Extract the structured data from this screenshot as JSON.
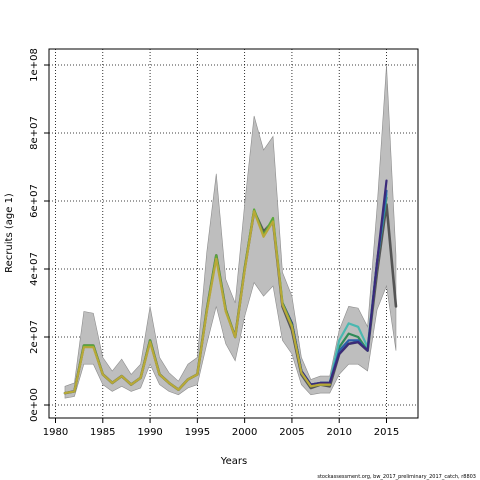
{
  "chart_data": {
    "type": "line",
    "xlabel": "Years",
    "ylabel": "Recruits (age 1)",
    "xlim": [
      1980,
      2018
    ],
    "ylim": [
      0,
      100000000
    ],
    "x_ticks": [
      1980,
      1985,
      1990,
      1995,
      2000,
      2005,
      2010,
      2015
    ],
    "y_ticks": [
      0,
      20000000,
      40000000,
      60000000,
      80000000,
      100000000
    ],
    "y_tick_labels": [
      "0e+00",
      "2e+07",
      "4e+07",
      "6e+07",
      "8e+07",
      "1e+08"
    ],
    "grid": true,
    "footnote": "stockassessment.org, bw_2017_preliminary_2017_catch, r8803",
    "confidence_band": {
      "color": "#bebebe",
      "x": [
        1981,
        1982,
        1983,
        1984,
        1985,
        1986,
        1987,
        1988,
        1989,
        1990,
        1991,
        1992,
        1993,
        1994,
        1995,
        1996,
        1997,
        1998,
        1999,
        2000,
        2001,
        2002,
        2003,
        2004,
        2005,
        2006,
        2007,
        2008,
        2009,
        2010,
        2011,
        2012,
        2013,
        2014,
        2015,
        2016
      ],
      "lower": [
        2000000,
        2500000,
        12000000,
        12000000,
        6000000,
        4000000,
        5500000,
        4000000,
        5000000,
        12000000,
        6000000,
        4000000,
        3000000,
        5000000,
        6000000,
        18000000,
        29000000,
        18000000,
        13000000,
        26000000,
        36000000,
        32000000,
        35000000,
        19000000,
        15000000,
        6000000,
        3000000,
        3500000,
        3500000,
        9000000,
        12000000,
        12000000,
        10000000,
        28000000,
        35000000,
        16000000
      ],
      "upper": [
        5500000,
        6500000,
        27500000,
        27000000,
        14000000,
        10000000,
        13500000,
        9000000,
        12000000,
        29000000,
        14000000,
        9500000,
        7000000,
        12000000,
        14000000,
        45000000,
        68000000,
        37000000,
        30000000,
        59000000,
        85000000,
        75000000,
        79000000,
        39000000,
        32000000,
        14000000,
        7500000,
        8500000,
        8500000,
        22000000,
        29000000,
        28500000,
        23000000,
        58000000,
        100000000,
        44000000
      ]
    },
    "series": [
      {
        "color": "#555555",
        "x": [
          1981,
          1982,
          1983,
          1984,
          1985,
          1986,
          1987,
          1988,
          1989,
          1990,
          1991,
          1992,
          1993,
          1994,
          1995,
          1996,
          1997,
          1998,
          1999,
          2000,
          2001,
          2002,
          2003,
          2004,
          2005,
          2006,
          2007,
          2008,
          2009,
          2010,
          2011,
          2012,
          2013,
          2014,
          2015,
          2016
        ],
        "values": [
          3500000,
          4000000,
          17500000,
          17500000,
          9000000,
          6500000,
          8500000,
          6000000,
          8000000,
          19000000,
          9000000,
          6500000,
          4500000,
          7500000,
          9000000,
          28000000,
          44000000,
          28000000,
          20000000,
          40000000,
          57000000,
          51000000,
          54000000,
          29000000,
          22000000,
          9000000,
          5000000,
          6000000,
          5500000,
          15000000,
          18000000,
          18500000,
          16000000,
          39000000,
          59000000,
          29000000
        ]
      },
      {
        "color": "#2e8b57",
        "x": [
          2004,
          2005,
          2006,
          2007,
          2008,
          2009,
          2010,
          2011,
          2012,
          2013,
          2014,
          2015
        ],
        "values": [
          30000000,
          24000000,
          10000000,
          6000000,
          6500000,
          6500000,
          17000000,
          21000000,
          20000000,
          16000000,
          42000000,
          61000000
        ]
      },
      {
        "color": "#4ab8b0",
        "x": [
          2004,
          2005,
          2006,
          2007,
          2008,
          2009,
          2010,
          2011,
          2012,
          2013,
          2014,
          2015
        ],
        "values": [
          30000000,
          24000000,
          10000000,
          6000000,
          6500000,
          6500000,
          19000000,
          24000000,
          23000000,
          17000000,
          42000000,
          62000000
        ]
      },
      {
        "color": "#2a5fa8",
        "x": [
          2004,
          2005,
          2006,
          2007,
          2008,
          2009,
          2010,
          2011,
          2012,
          2013,
          2014,
          2015
        ],
        "values": [
          30000000,
          24000000,
          10000000,
          6000000,
          6500000,
          6500000,
          16000000,
          19000000,
          19000000,
          16000000,
          42000000,
          63000000
        ]
      },
      {
        "color": "#3b2a7a",
        "x": [
          2004,
          2005,
          2006,
          2007,
          2008,
          2009,
          2010,
          2011,
          2012,
          2013,
          2014,
          2015
        ],
        "values": [
          30000000,
          24000000,
          10000000,
          6000000,
          6500000,
          6500000,
          15000000,
          18000000,
          18500000,
          16000000,
          42000000,
          66000000
        ]
      },
      {
        "color": "#5aa83a",
        "x": [
          1981,
          1982,
          1983,
          1984,
          1985,
          1986,
          1987,
          1988,
          1989,
          1990,
          1991,
          1992,
          1993,
          1994,
          1995,
          1996,
          1997,
          1998,
          1999,
          2000,
          2001,
          2002,
          2003,
          2004,
          2005,
          2006,
          2007,
          2008,
          2009
        ],
        "values": [
          3500000,
          4000000,
          17500000,
          17500000,
          9000000,
          6500000,
          8500000,
          6000000,
          8000000,
          19000000,
          9000000,
          6500000,
          4500000,
          7500000,
          9000000,
          28000000,
          44000000,
          28000000,
          20000000,
          40000000,
          57500000,
          50000000,
          55000000,
          30000000,
          23500000,
          9500000,
          5500000,
          6000000,
          6000000
        ]
      },
      {
        "color": "#b8a838",
        "x": [
          1981,
          1982,
          1983,
          1984,
          1985,
          1986,
          1987,
          1988,
          1989,
          1990,
          1991,
          1992,
          1993,
          1994,
          1995,
          1996,
          1997,
          1998,
          1999,
          2000,
          2001,
          2002,
          2003,
          2004,
          2005,
          2006,
          2007,
          2008,
          2009
        ],
        "values": [
          3500000,
          4000000,
          17000000,
          17000000,
          9000000,
          6500000,
          8500000,
          6000000,
          8000000,
          18500000,
          9000000,
          6500000,
          4500000,
          7500000,
          9000000,
          27500000,
          43000000,
          27500000,
          20000000,
          39500000,
          57000000,
          49500000,
          54000000,
          29500000,
          23000000,
          9500000,
          5500000,
          6000000,
          6000000
        ]
      }
    ]
  }
}
